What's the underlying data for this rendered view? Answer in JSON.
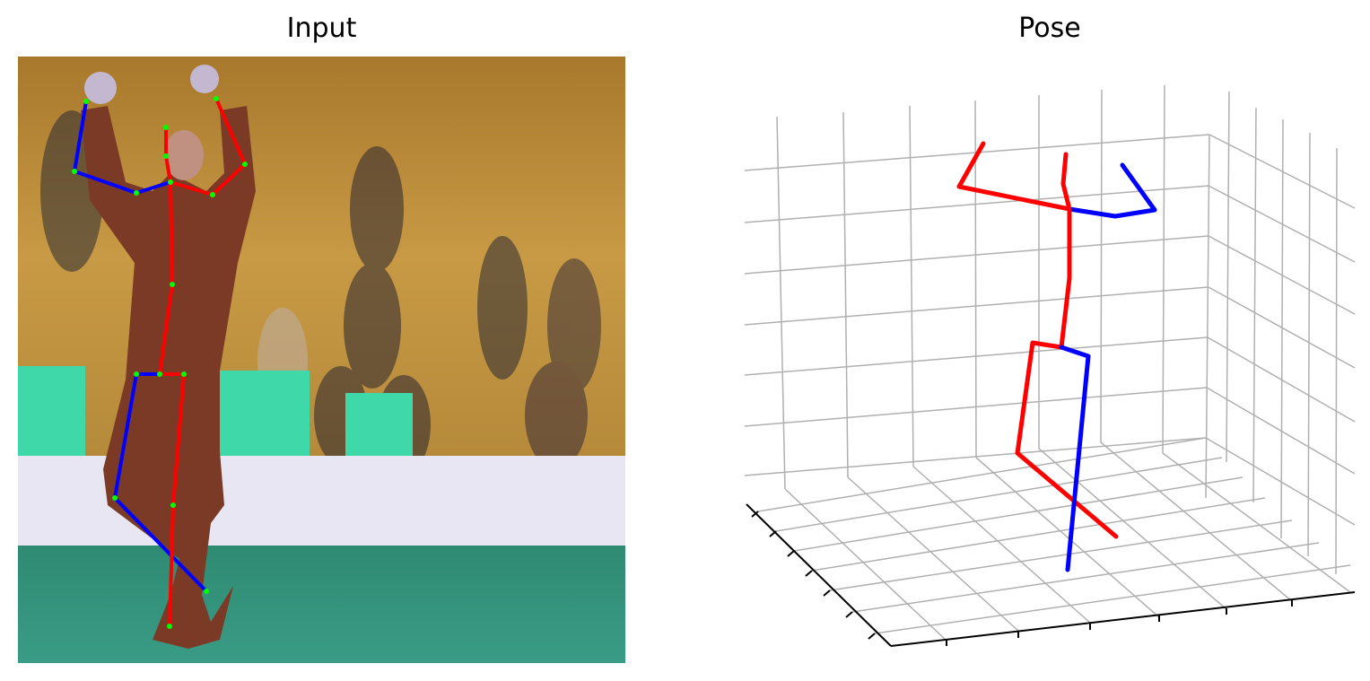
{
  "input_panel": {
    "title": "Input"
  },
  "pose_panel": {
    "title": "Pose"
  },
  "colors": {
    "left_limb": "#0000ff",
    "right_limb": "#ff0000",
    "keypoint": "#00ff00",
    "grid": "#b0b0b0",
    "axis": "#000000"
  }
}
